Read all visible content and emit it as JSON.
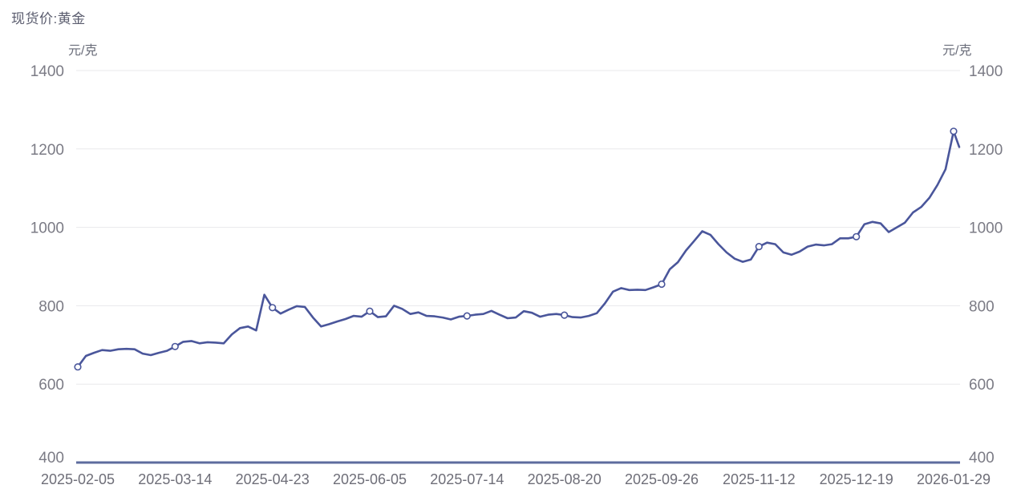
{
  "title": "现货价:黄金",
  "unit_left": "元/克",
  "unit_right": "元/克",
  "colors": {
    "line": "#4a569b",
    "marker_fill": "#ffffff",
    "axis_line": "#5d6c9e",
    "gridline": "#e8e8eb",
    "y_tick_text": "#7b7b85",
    "x_tick_text": "#6e6e78",
    "title_text": "#5a5c6e"
  },
  "chart_data": {
    "type": "line",
    "title": "现货价:黄金",
    "ylabel": "元/克",
    "legend_position": "none",
    "grid": true,
    "ylim": [
      400,
      1400
    ],
    "y_ticks": [
      1400,
      1200,
      1000,
      800,
      600,
      400
    ],
    "x_tick_labels": [
      "2025-02-05",
      "2025-03-14",
      "2025-04-23",
      "2025-06-05",
      "2025-07-14",
      "2025-08-20",
      "2025-09-26",
      "2025-11-12",
      "2025-12-19",
      "2026-01-29"
    ],
    "tick_point_values": {
      "2025-02-05": 644,
      "2025-03-14": 696,
      "2025-04-23": 795,
      "2025-06-05": 786,
      "2025-07-14": 774,
      "2025-08-20": 776,
      "2025-09-26": 855,
      "2025-11-12": 951,
      "2025-12-19": 976,
      "2026-01-29": 1245
    },
    "marker_indices": [
      0,
      12,
      24,
      36,
      48,
      60,
      72,
      84,
      96,
      108
    ],
    "series": [
      {
        "name": "现货价:黄金",
        "values": [
          644,
          672,
          680,
          687,
          685,
          689,
          690,
          689,
          678,
          674,
          680,
          685,
          696,
          708,
          710,
          704,
          707,
          706,
          704,
          727,
          743,
          747,
          737,
          828,
          795,
          780,
          790,
          799,
          797,
          770,
          747,
          753,
          760,
          766,
          774,
          772,
          786,
          771,
          773,
          800,
          792,
          779,
          783,
          774,
          773,
          770,
          765,
          772,
          774,
          777,
          779,
          787,
          777,
          768,
          770,
          786,
          782,
          772,
          777,
          779,
          776,
          771,
          770,
          774,
          781,
          806,
          836,
          845,
          840,
          841,
          840,
          847,
          855,
          893,
          911,
          941,
          965,
          990,
          981,
          957,
          936,
          920,
          912,
          918,
          951,
          961,
          957,
          936,
          930,
          938,
          951,
          956,
          954,
          957,
          972,
          972,
          976,
          1008,
          1014,
          1010,
          988,
          1000,
          1012,
          1038,
          1052,
          1075,
          1108,
          1148,
          1245,
          1205
        ]
      }
    ]
  }
}
